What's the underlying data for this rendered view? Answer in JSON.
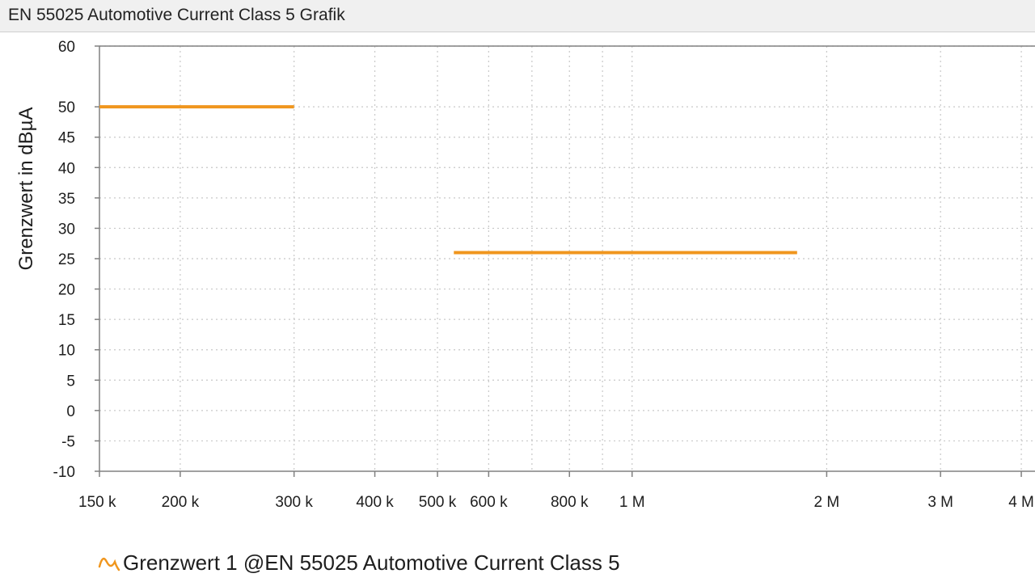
{
  "window": {
    "title": "EN 55025 Automotive Current Class 5 Grafik"
  },
  "legend": {
    "icon": "wave-icon",
    "label": "Grenzwert 1 @EN 55025 Automotive Current Class 5"
  },
  "colors": {
    "series": "#f0961e",
    "grid": "#c8c8c8",
    "axis": "#808080",
    "title_bar": "#f0f0f0"
  },
  "chart_data": {
    "type": "line",
    "title": "",
    "xlabel": "",
    "ylabel": "Grenzwert in dBµA",
    "x_scale": "log",
    "xlim": [
      150000,
      4200000
    ],
    "ylim": [
      -10,
      60
    ],
    "grid": true,
    "legend_position": "bottom-left",
    "y_ticks": [
      60,
      50,
      45,
      40,
      35,
      30,
      25,
      20,
      15,
      10,
      5,
      0,
      -5,
      -10
    ],
    "x_ticks": [
      {
        "value": 150000,
        "label": "150 k"
      },
      {
        "value": 200000,
        "label": "200 k"
      },
      {
        "value": 300000,
        "label": "300 k"
      },
      {
        "value": 400000,
        "label": "400 k"
      },
      {
        "value": 500000,
        "label": "500 k"
      },
      {
        "value": 600000,
        "label": "600 k"
      },
      {
        "value": 800000,
        "label": "800 k"
      },
      {
        "value": 1000000,
        "label": "1 M"
      },
      {
        "value": 2000000,
        "label": "2 M"
      },
      {
        "value": 3000000,
        "label": "3 M"
      },
      {
        "value": 4000000,
        "label": "4 M"
      }
    ],
    "extra_gridlines_x": [
      700000,
      900000
    ],
    "series": [
      {
        "name": "Grenzwert 1 @EN 55025 Automotive Current Class 5",
        "segments": [
          {
            "x": [
              150000,
              300000
            ],
            "y": [
              50,
              50
            ]
          },
          {
            "x": [
              530000,
              1800000
            ],
            "y": [
              26,
              26
            ]
          }
        ]
      }
    ]
  }
}
